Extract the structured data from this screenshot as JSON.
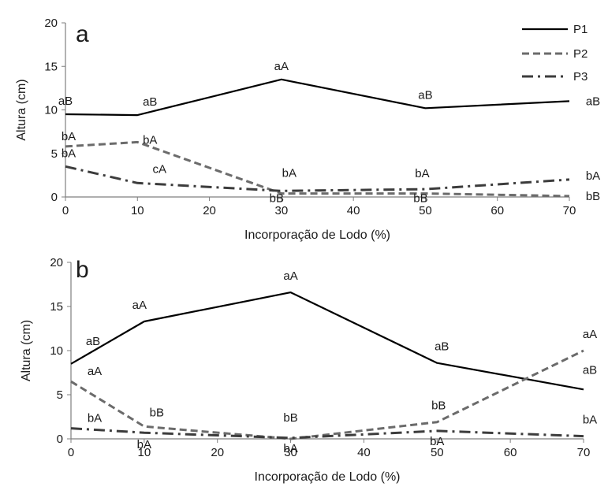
{
  "chart_data": [
    {
      "type": "line",
      "panel_label": "a",
      "xlabel": "Incorporação de Lodo (%)",
      "ylabel": "Altura (cm)",
      "xlim": [
        0,
        70
      ],
      "ylim": [
        0,
        20
      ],
      "xticks": [
        0,
        10,
        20,
        30,
        40,
        50,
        60,
        70
      ],
      "yticks": [
        0,
        5,
        10,
        15,
        20
      ],
      "x": [
        0,
        10,
        30,
        50,
        70
      ],
      "grid": false,
      "legend": "top-right",
      "series": [
        {
          "name": "P1",
          "style": "solid",
          "values": [
            9.5,
            9.4,
            13.5,
            10.2,
            11.0
          ],
          "labels": [
            "aB",
            "aB",
            "aA",
            "aB",
            "aB"
          ]
        },
        {
          "name": "P2",
          "style": "dashed",
          "values": [
            5.8,
            6.3,
            0.4,
            0.4,
            0.1
          ],
          "labels": [
            "bA",
            "bA",
            "bB",
            "bB",
            "bB"
          ]
        },
        {
          "name": "P3",
          "style": "dashdot",
          "values": [
            3.5,
            1.6,
            0.7,
            0.9,
            2.0
          ],
          "labels": [
            "bA",
            "cA",
            "bA",
            "bA",
            "bA"
          ]
        }
      ]
    },
    {
      "type": "line",
      "panel_label": "b",
      "xlabel": "Incorporação de Lodo (%)",
      "ylabel": "Altura (cm)",
      "xlim": [
        0,
        70
      ],
      "ylim": [
        0,
        20
      ],
      "xticks": [
        0,
        10,
        20,
        30,
        40,
        50,
        60,
        70
      ],
      "yticks": [
        0,
        5,
        10,
        15,
        20
      ],
      "x": [
        0,
        10,
        30,
        50,
        70
      ],
      "grid": false,
      "series": [
        {
          "name": "P1",
          "style": "solid",
          "values": [
            8.5,
            13.3,
            16.6,
            8.6,
            5.6
          ],
          "labels": [
            "aB",
            "aA",
            "aA",
            "aB",
            "aB"
          ]
        },
        {
          "name": "P2",
          "style": "dashed",
          "values": [
            6.5,
            1.4,
            0.0,
            1.9,
            10.0
          ],
          "labels": [
            "aA",
            "bB",
            "bB",
            "bB",
            "aA"
          ]
        },
        {
          "name": "P3",
          "style": "dashdot",
          "values": [
            1.2,
            0.7,
            0.1,
            0.9,
            0.3
          ],
          "labels": [
            "bA",
            "bA",
            "bA",
            "bA",
            "bA"
          ]
        }
      ]
    }
  ],
  "colors": {
    "P1": "#000000",
    "P2": "#6b6b6b",
    "P3": "#3c3c3c",
    "axis": "#7f7f7f",
    "text": "#1a1a1a"
  }
}
